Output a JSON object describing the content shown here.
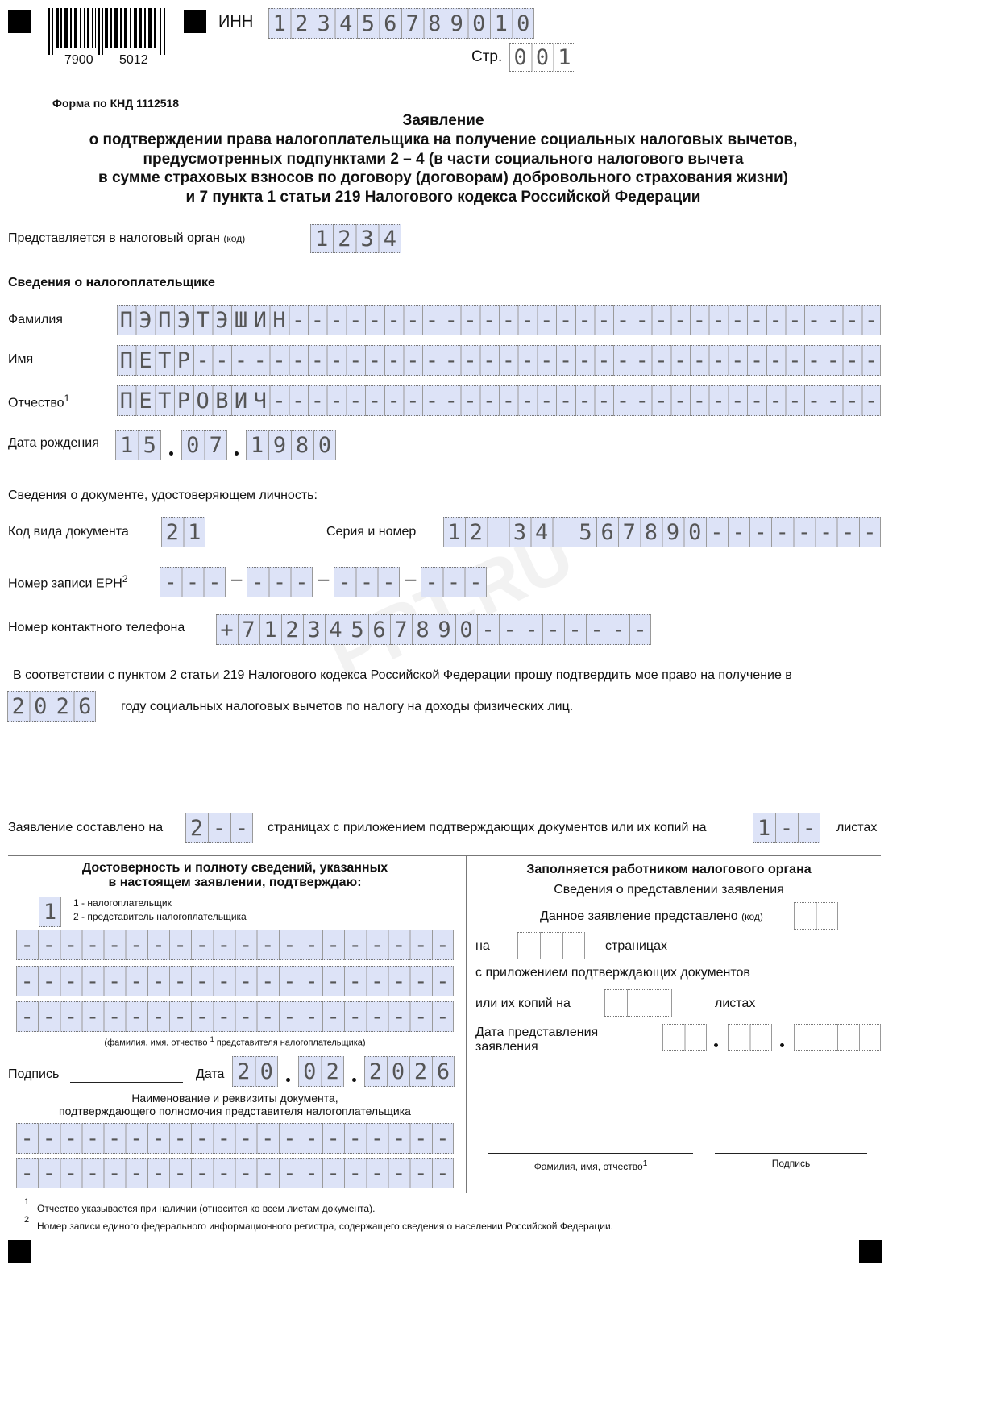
{
  "header": {
    "barcode_left": "7900",
    "barcode_right": "5012",
    "inn_label": "ИНН",
    "inn": "123456789010",
    "page_label": "Стр.",
    "page": "001",
    "knd": "Форма по КНД 1112518"
  },
  "title": [
    "Заявление",
    "о подтверждении права налогоплательщика на получение социальных налоговых вычетов,",
    "предусмотренных подпунктами 2 – 4 (в части социального налогового вычета",
    "в сумме страховых взносов по договору (договорам) добровольного страхования жизни)",
    "и 7 пункта 1 статьи 219 Налогового кодекса Российской Федерации"
  ],
  "tax_authority": {
    "label": "Представляется в налоговый орган",
    "label_small": "(код)",
    "code": "1234"
  },
  "taxpayer": {
    "heading": "Сведения о налогоплательщике",
    "surname_label": "Фамилия",
    "surname": "ПЭПЭТЭШИН-------------------------------",
    "name_label": "Имя",
    "name": "ПЕТР------------------------------------",
    "patronymic_label": "Отчество",
    "patronymic_sup": "1",
    "patronymic": "ПЕТРОВИЧ--------------------------------",
    "birth_label": "Дата рождения",
    "birth_day": "15",
    "birth_month": "07",
    "birth_year": "1980"
  },
  "document": {
    "heading": "Сведения о документе, удостоверяющем личность:",
    "type_label": "Код вида документа",
    "type": "21",
    "series_label": "Серия и номер",
    "series": "12 34 567890--------",
    "ern_label": "Номер записи ЕРН",
    "ern_sup": "2",
    "ern": [
      "---",
      "---",
      "---",
      "---"
    ],
    "phone_label": "Номер контактного телефона",
    "phone": "+71234567890--------"
  },
  "request": {
    "text": "В соответствии с пунктом 2 статьи 219 Налогового кодекса Российской Федерации прошу подтвердить мое право на получение в",
    "year": "2026",
    "text2": "году социальных налоговых вычетов по налогу на доходы физических лиц."
  },
  "pages": {
    "label": "Заявление составлено на",
    "pages": "2--",
    "middle": "страницах с приложением подтверждающих документов или их копий на",
    "sheets": "1--",
    "end": "листах"
  },
  "confirm": {
    "heading1": "Достоверность и полноту сведений, указанных",
    "heading2": "в настоящем заявлении, подтверждаю:",
    "value": "1",
    "opt1": "1 - налогоплательщик",
    "opt2": "2 - представитель налогоплательщика",
    "rows": [
      "--------------------",
      "--------------------",
      "--------------------"
    ],
    "caption": "(фамилия, имя, отчество",
    "caption_sup": "1",
    "caption_end": "представителя налогоплательщика)",
    "sign_label": "Подпись",
    "date_label": "Дата",
    "day": "20",
    "month": "02",
    "year": "2026",
    "doc_heading1": "Наименование и реквизиты документа,",
    "doc_heading2": "подтверждающего полномочия представителя налогоплательщика",
    "doc_rows": [
      "--------------------",
      "--------------------"
    ]
  },
  "office": {
    "heading": "Заполняется работником налогового органа",
    "sub": "Сведения о представлении заявления",
    "submitted": "Данное заявление представлено",
    "code_small": "(код)",
    "code": "  ",
    "on": "на",
    "pages": "   ",
    "pages_label": "страницах",
    "attach": "с приложением подтверждающих документов",
    "copies": "или их копий на",
    "sheets": "   ",
    "sheets_label": "листах",
    "date_label1": "Дата представления",
    "date_label2": "заявления",
    "d": "  ",
    "m": "  ",
    "y": "    ",
    "fio": "Фамилия, имя, отчество",
    "fio_sup": "1",
    "sign": "Подпись"
  },
  "footnotes": [
    {
      "n": "1",
      "text": "Отчество указывается при наличии (относится ко всем листам документа)."
    },
    {
      "n": "2",
      "text": "Номер записи единого федерального информационного регистра, содержащего сведения о населении Российской Федерации."
    }
  ],
  "watermark": "PPT.RU"
}
